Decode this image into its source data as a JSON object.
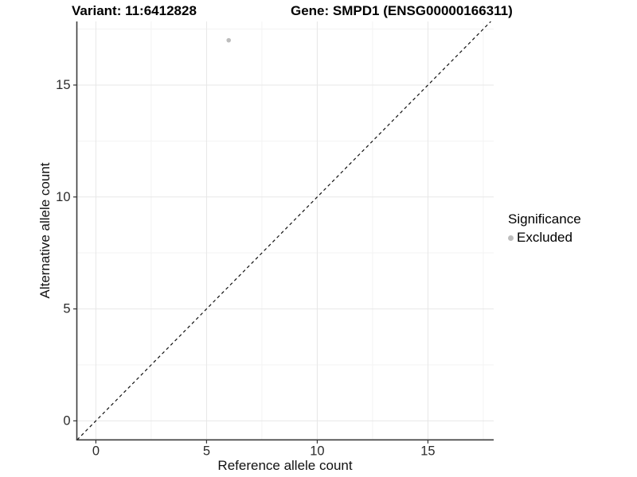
{
  "figure": {
    "title_variant": "Variant: 11:6412828",
    "title_gene": "Gene: SMPD1 (ENSG00000166311)"
  },
  "chart_data": {
    "type": "scatter",
    "title": "Variant: 11:6412828 / Gene: SMPD1 (ENSG00000166311)",
    "xlabel": "Reference allele count",
    "ylabel": "Alternative allele count",
    "x_ticks": [
      0,
      5,
      10,
      15
    ],
    "y_ticks": [
      0,
      5,
      10,
      15
    ],
    "x_minor_ticks": [
      2.5,
      7.5,
      12.5,
      17.5
    ],
    "y_minor_ticks": [
      2.5,
      7.5,
      12.5,
      17.5
    ],
    "xlim": [
      -0.86,
      17.97
    ],
    "ylim": [
      -0.85,
      17.84
    ],
    "grid": "major+minor",
    "series": [
      {
        "name": "Excluded",
        "color": "#bdbdbd",
        "point_radius": 2.8,
        "points": [
          {
            "x": 6,
            "y": 17
          }
        ]
      }
    ],
    "reference_line": {
      "kind": "y=x",
      "style": "dashed",
      "color": "#111111"
    },
    "legend": {
      "title": "Significance",
      "position": "right",
      "entries": [
        {
          "label": "Excluded",
          "color": "#bdbdbd"
        }
      ]
    }
  },
  "colors": {
    "background": "#ffffff",
    "grid_major": "#e7e7e7",
    "grid_minor": "#f3f3f3",
    "axis_line": "#3d3d3d",
    "tick_mark": "#333333",
    "tick_label": "#2b2b2b",
    "point": "#bdbdbd"
  }
}
